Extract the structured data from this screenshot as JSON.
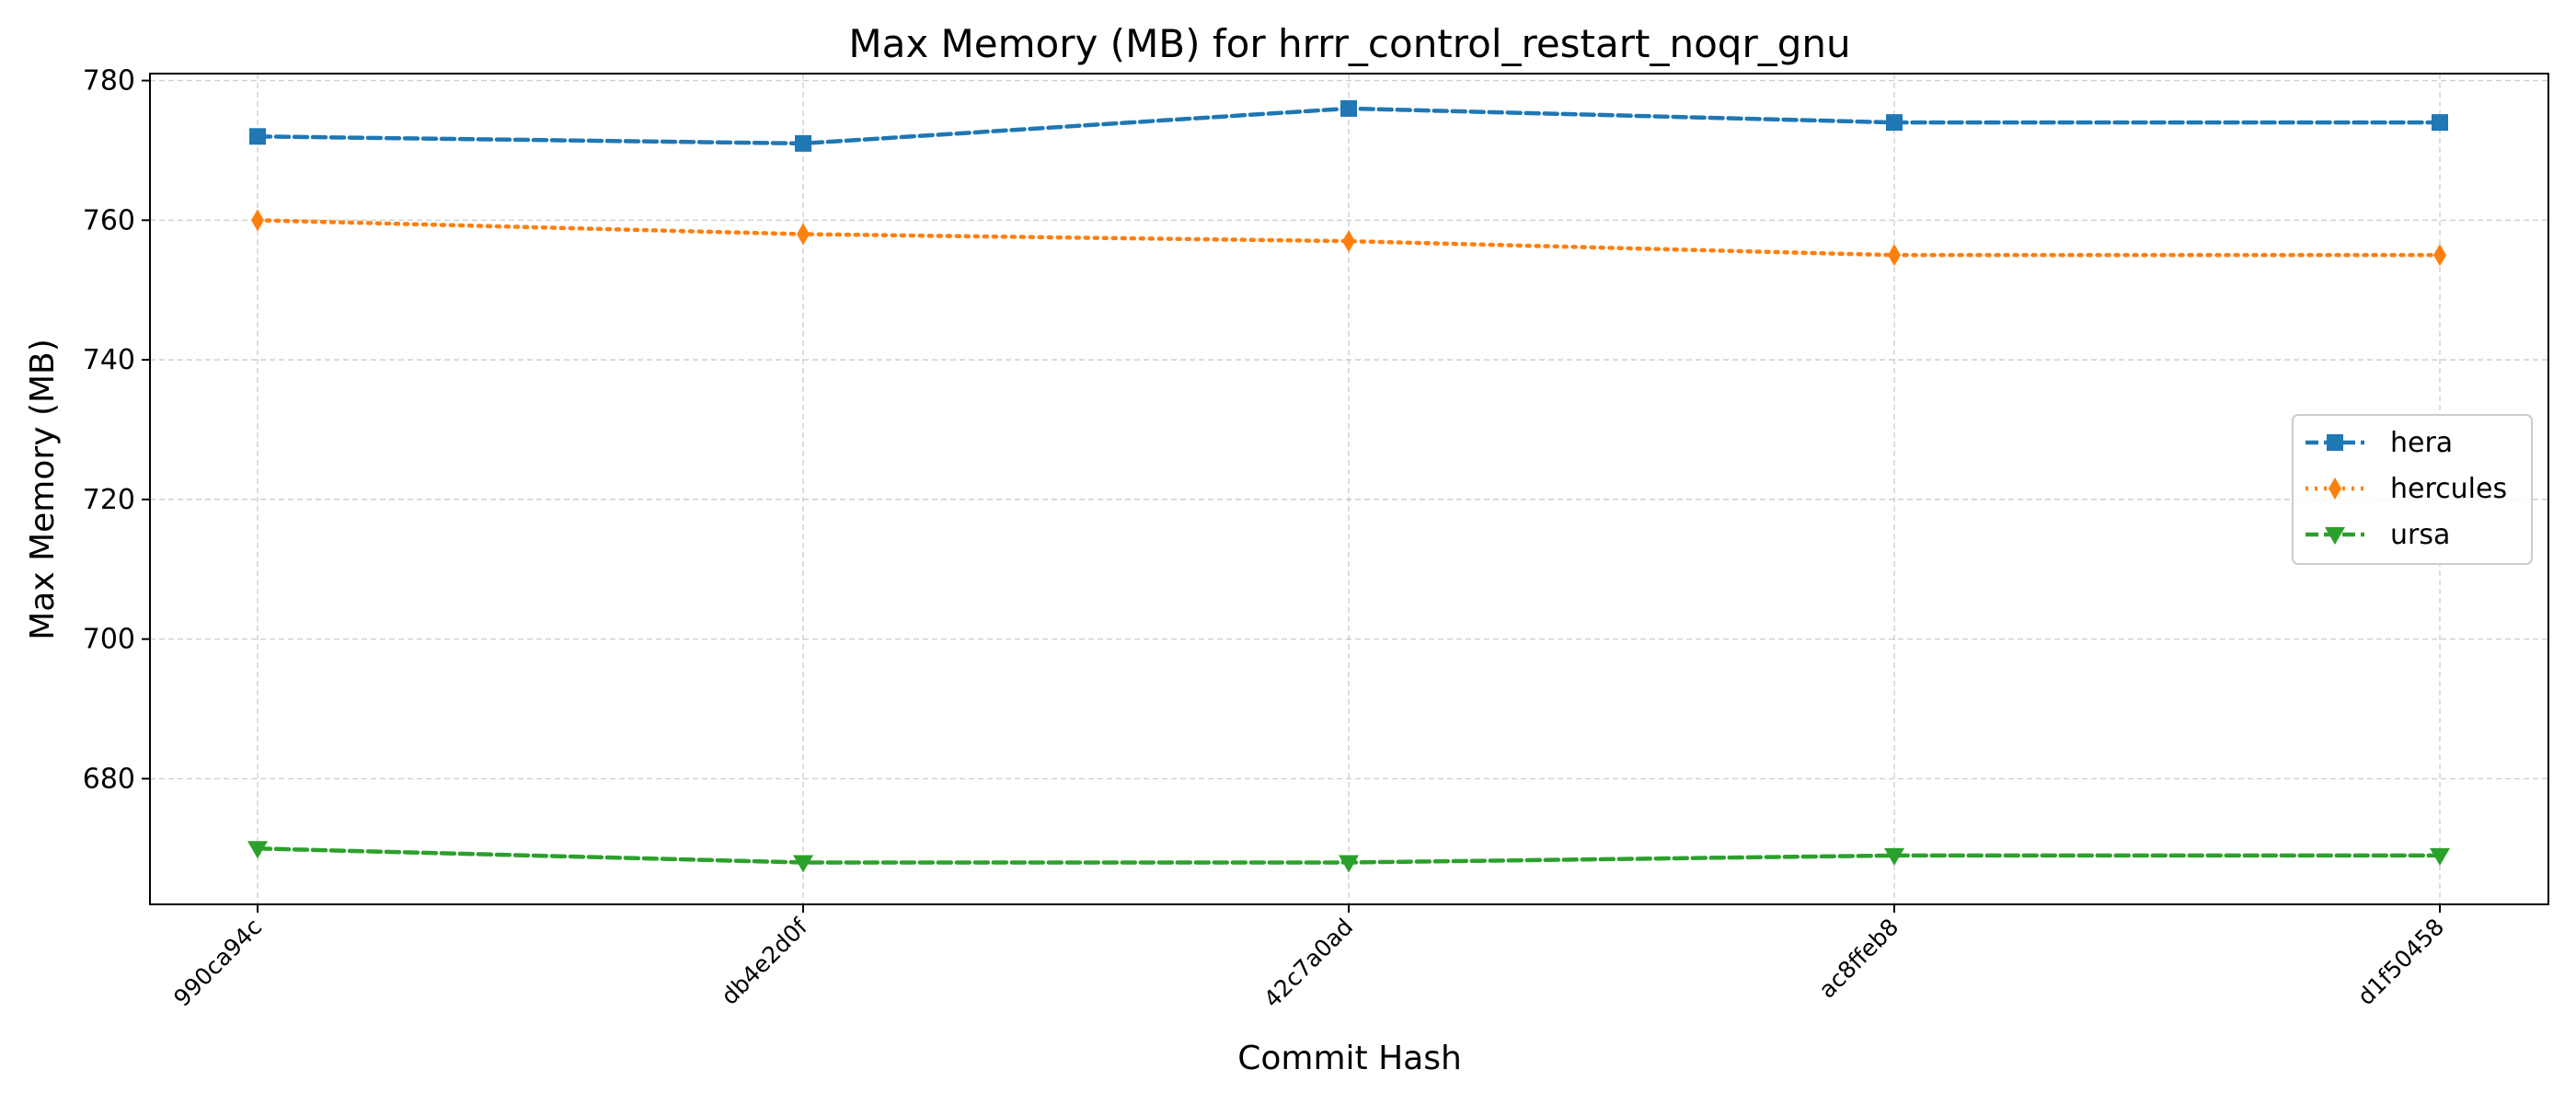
{
  "chart_data": {
    "type": "line",
    "title": "Max Memory (MB) for hrrr_control_restart_noqr_gnu",
    "xlabel": "Commit Hash",
    "ylabel": "Max Memory (MB)",
    "categories": [
      "990ca94c",
      "db4e2d0f",
      "42c7a0ad",
      "ac8ffeb8",
      "d1f50458"
    ],
    "ylim": [
      662,
      781
    ],
    "yticks": [
      680,
      700,
      720,
      740,
      760,
      780
    ],
    "grid": true,
    "legend_position": "center-right",
    "series": [
      {
        "name": "hera",
        "values": [
          772,
          771,
          776,
          774,
          774
        ],
        "color": "#1f77b4",
        "linestyle": "dashed",
        "marker": "square"
      },
      {
        "name": "hercules",
        "values": [
          760,
          758,
          757,
          755,
          755
        ],
        "color": "#ff7f0e",
        "linestyle": "dotted",
        "marker": "thin-diamond"
      },
      {
        "name": "ursa",
        "values": [
          670,
          668,
          668,
          669,
          669
        ],
        "color": "#2ca02c",
        "linestyle": "dashed",
        "marker": "triangle-down"
      }
    ]
  }
}
